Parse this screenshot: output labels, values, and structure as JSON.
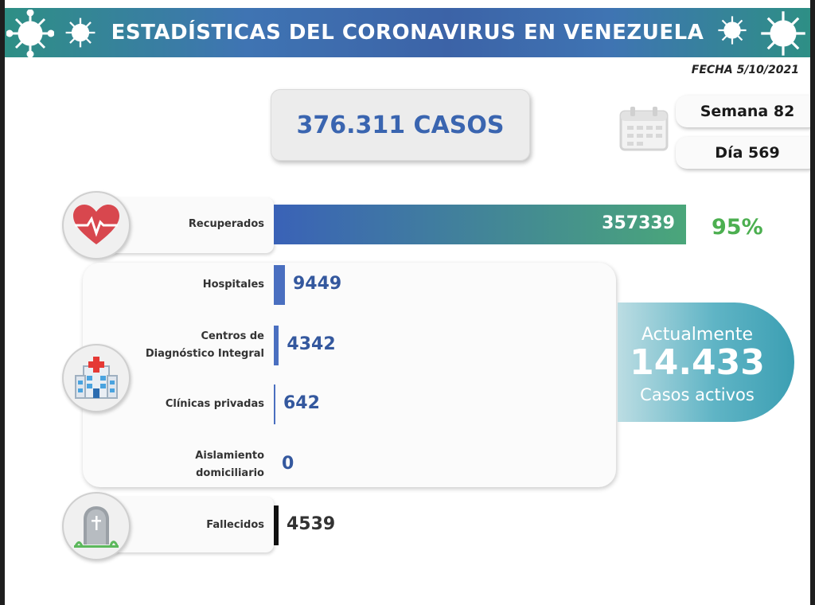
{
  "header": {
    "title": "ESTADÍSTICAS DEL CORONAVIRUS EN VENEZUELA"
  },
  "date_label": "FECHA 5/10/2021",
  "total_cases": "376.311 CASOS",
  "week": "Semana 82",
  "day": "Día 569",
  "active": {
    "line1": "Actualmente",
    "number": "14.433",
    "line2": "Casos activos"
  },
  "colors": {
    "recovered_bar_start": "#3a62b7",
    "recovered_bar_end": "#4aa67a",
    "care_bar": "#4a6fc0",
    "deaths_bar": "#111111",
    "percent_text": "#4caf50",
    "value_text": "#34589e"
  },
  "icons": {
    "recovered": "heart-pulse-icon",
    "care": "hospital-icon",
    "deaths": "tombstone-icon",
    "calendar": "calendar-icon",
    "decoration": "virus-icon"
  },
  "chart_data": {
    "type": "bar",
    "title": "",
    "xlabel": "",
    "ylabel": "",
    "categories": [
      "Recuperados",
      "Hospitales",
      "Centros de Diagnóstico Integral",
      "Clínicas privadas",
      "Aislamiento domiciliario",
      "Fallecidos"
    ],
    "category_lines": [
      [
        "Recuperados"
      ],
      [
        "Hospitales"
      ],
      [
        "Centros de",
        "Diagnóstico Integral"
      ],
      [
        "Clínicas privadas"
      ],
      [
        "Aislamiento",
        "domiciliario"
      ],
      [
        "Fallecidos"
      ]
    ],
    "values": [
      357339,
      9449,
      4342,
      642,
      0,
      4539
    ],
    "value_labels": [
      "357339",
      "9449",
      "4342",
      "642",
      "0",
      "4539"
    ],
    "recovered_percent": "95%"
  }
}
